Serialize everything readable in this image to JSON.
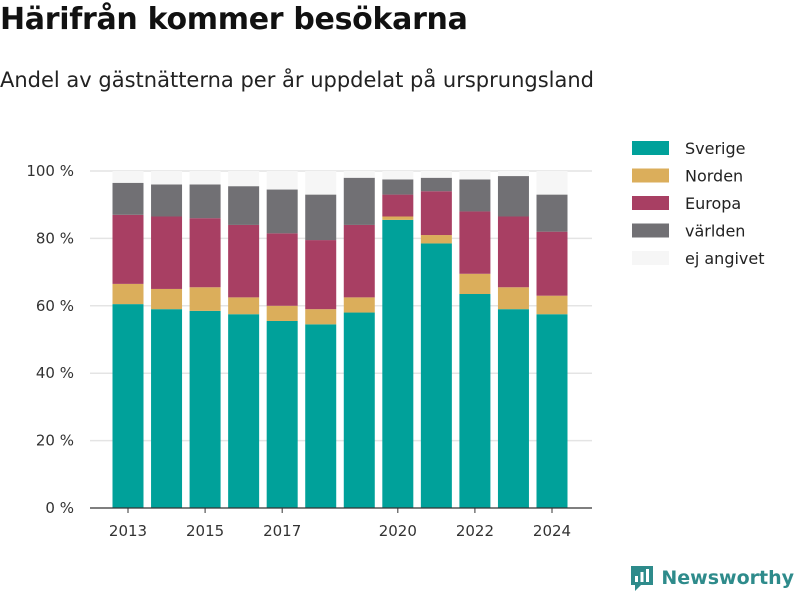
{
  "title": "Härifrån kommer besökarna",
  "subtitle": "Andel av gästnätterna per år uppdelat på ursprungsland",
  "brand": {
    "name": "Newsworthy",
    "color": "#2e8b8b"
  },
  "chart_data": {
    "type": "bar",
    "stacked": true,
    "x": [
      2013,
      2014,
      2015,
      2016,
      2017,
      2018,
      2019,
      2020,
      2021,
      2022,
      2023,
      2024
    ],
    "x_tick_labels": [
      "2013",
      "2015",
      "2017",
      "2020",
      "2022",
      "2024"
    ],
    "x_tick_values": [
      2013,
      2015,
      2017,
      2020,
      2022,
      2024
    ],
    "ylim": [
      0,
      100
    ],
    "y_ticks": [
      0,
      20,
      40,
      60,
      80,
      100
    ],
    "y_tick_labels": [
      "0 %",
      "20 %",
      "40 %",
      "60 %",
      "80 %",
      "100 %"
    ],
    "grid": true,
    "legend_position": "right",
    "series": [
      {
        "name": "Sverige",
        "color": "#00a19a",
        "values": [
          60.5,
          59,
          58.5,
          57.5,
          55.5,
          54.5,
          58,
          85.5,
          78.5,
          63.5,
          59,
          57.5
        ]
      },
      {
        "name": "Norden",
        "color": "#dbae5b",
        "values": [
          6,
          6,
          7,
          5,
          4.5,
          4.5,
          4.5,
          1,
          2.5,
          6,
          6.5,
          5.5
        ]
      },
      {
        "name": "Europa",
        "color": "#a83f63",
        "values": [
          20.5,
          21.5,
          20.5,
          21.5,
          21.5,
          20.5,
          21.5,
          6.5,
          13,
          18.5,
          21,
          19
        ]
      },
      {
        "name": "världen",
        "color": "#717074",
        "values": [
          9.5,
          9.5,
          10,
          11.5,
          13,
          13.5,
          14,
          4.5,
          4,
          9.5,
          12,
          11
        ]
      },
      {
        "name": "ej angivet",
        "color": "#f6f6f6",
        "values": [
          3.5,
          4,
          4,
          4.5,
          5.5,
          7,
          2,
          2.5,
          2,
          2.5,
          1.5,
          7
        ]
      }
    ]
  }
}
